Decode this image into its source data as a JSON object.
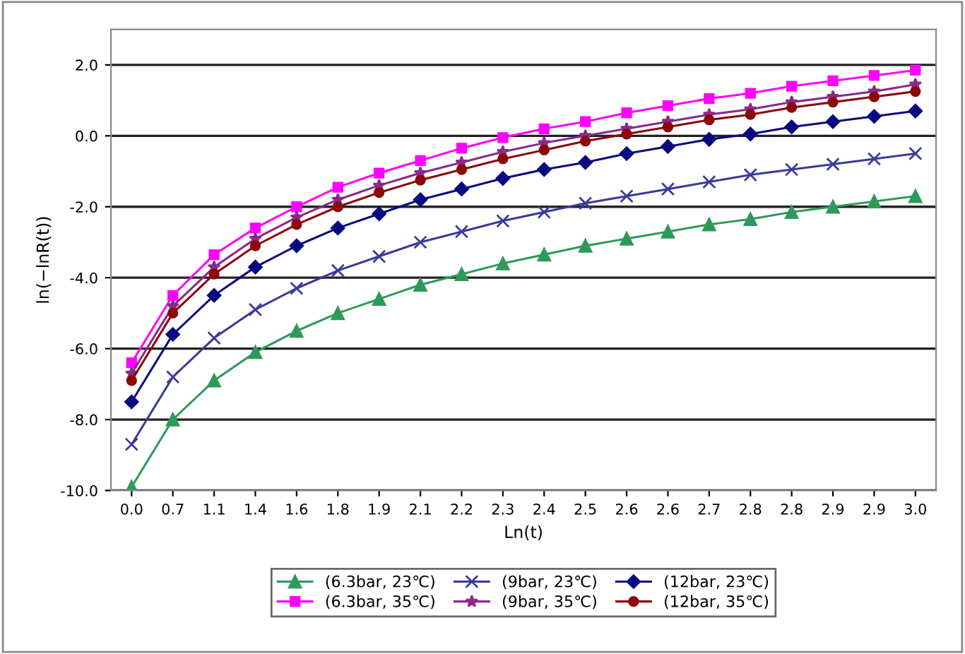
{
  "chart_data": {
    "type": "line",
    "xlabel": "Ln(t)",
    "ylabel": "ln(−lnR(t))",
    "categories": [
      "0.0",
      "0.7",
      "1.1",
      "1.4",
      "1.6",
      "1.8",
      "1.9",
      "2.1",
      "2.2",
      "2.3",
      "2.4",
      "2.5",
      "2.6",
      "2.6",
      "2.7",
      "2.8",
      "2.8",
      "2.9",
      "2.9",
      "3.0"
    ],
    "ylim": [
      -10,
      3
    ],
    "yticks": [
      {
        "value": -10,
        "label": "-10.0"
      },
      {
        "value": -8,
        "label": "-8.0"
      },
      {
        "value": -6,
        "label": "-6.0"
      },
      {
        "value": -4,
        "label": "-4.0"
      },
      {
        "value": -2,
        "label": "-2.0"
      },
      {
        "value": 0,
        "label": "0.0"
      },
      {
        "value": 2,
        "label": "2.0"
      }
    ],
    "grid": "y",
    "legend": "bottom",
    "series": [
      {
        "name": "(6.3bar, 23℃)",
        "color": "#2e9a5a",
        "marker": "triangle",
        "values": [
          -9.9,
          -8.0,
          -6.9,
          -6.1,
          -5.5,
          -5.0,
          -4.6,
          -4.2,
          -3.9,
          -3.6,
          -3.35,
          -3.1,
          -2.9,
          -2.7,
          -2.5,
          -2.35,
          -2.15,
          -2.0,
          -1.85,
          -1.7
        ]
      },
      {
        "name": "(9bar, 23℃)",
        "color": "#3a3a9a",
        "marker": "cross",
        "values": [
          -8.7,
          -6.8,
          -5.7,
          -4.9,
          -4.3,
          -3.8,
          -3.4,
          -3.0,
          -2.7,
          -2.4,
          -2.15,
          -1.9,
          -1.7,
          -1.5,
          -1.3,
          -1.1,
          -0.95,
          -0.8,
          -0.65,
          -0.5
        ]
      },
      {
        "name": "(12bar, 23℃)",
        "color": "#0a0a80",
        "marker": "diamond",
        "values": [
          -7.5,
          -5.6,
          -4.5,
          -3.7,
          -3.1,
          -2.6,
          -2.2,
          -1.8,
          -1.5,
          -1.2,
          -0.95,
          -0.75,
          -0.5,
          -0.3,
          -0.1,
          0.05,
          0.25,
          0.4,
          0.55,
          0.7
        ]
      },
      {
        "name": "(6.3bar, 35℃)",
        "color": "#ff00ff",
        "marker": "square",
        "values": [
          -6.4,
          -4.5,
          -3.35,
          -2.6,
          -2.0,
          -1.45,
          -1.05,
          -0.7,
          -0.35,
          -0.05,
          0.2,
          0.4,
          0.65,
          0.85,
          1.05,
          1.2,
          1.4,
          1.55,
          1.7,
          1.85
        ]
      },
      {
        "name": "(9bar, 35℃)",
        "color": "#8a2a8a",
        "marker": "star",
        "values": [
          -6.7,
          -4.8,
          -3.7,
          -2.9,
          -2.3,
          -1.8,
          -1.4,
          -1.05,
          -0.75,
          -0.45,
          -0.2,
          0.0,
          0.2,
          0.4,
          0.6,
          0.75,
          0.95,
          1.1,
          1.25,
          1.45
        ]
      },
      {
        "name": "(12bar, 35℃)",
        "color": "#8b0a0a",
        "marker": "circle",
        "values": [
          -6.9,
          -5.0,
          -3.9,
          -3.1,
          -2.5,
          -2.0,
          -1.6,
          -1.25,
          -0.95,
          -0.65,
          -0.4,
          -0.15,
          0.05,
          0.25,
          0.45,
          0.6,
          0.8,
          0.95,
          1.1,
          1.25
        ]
      }
    ]
  }
}
